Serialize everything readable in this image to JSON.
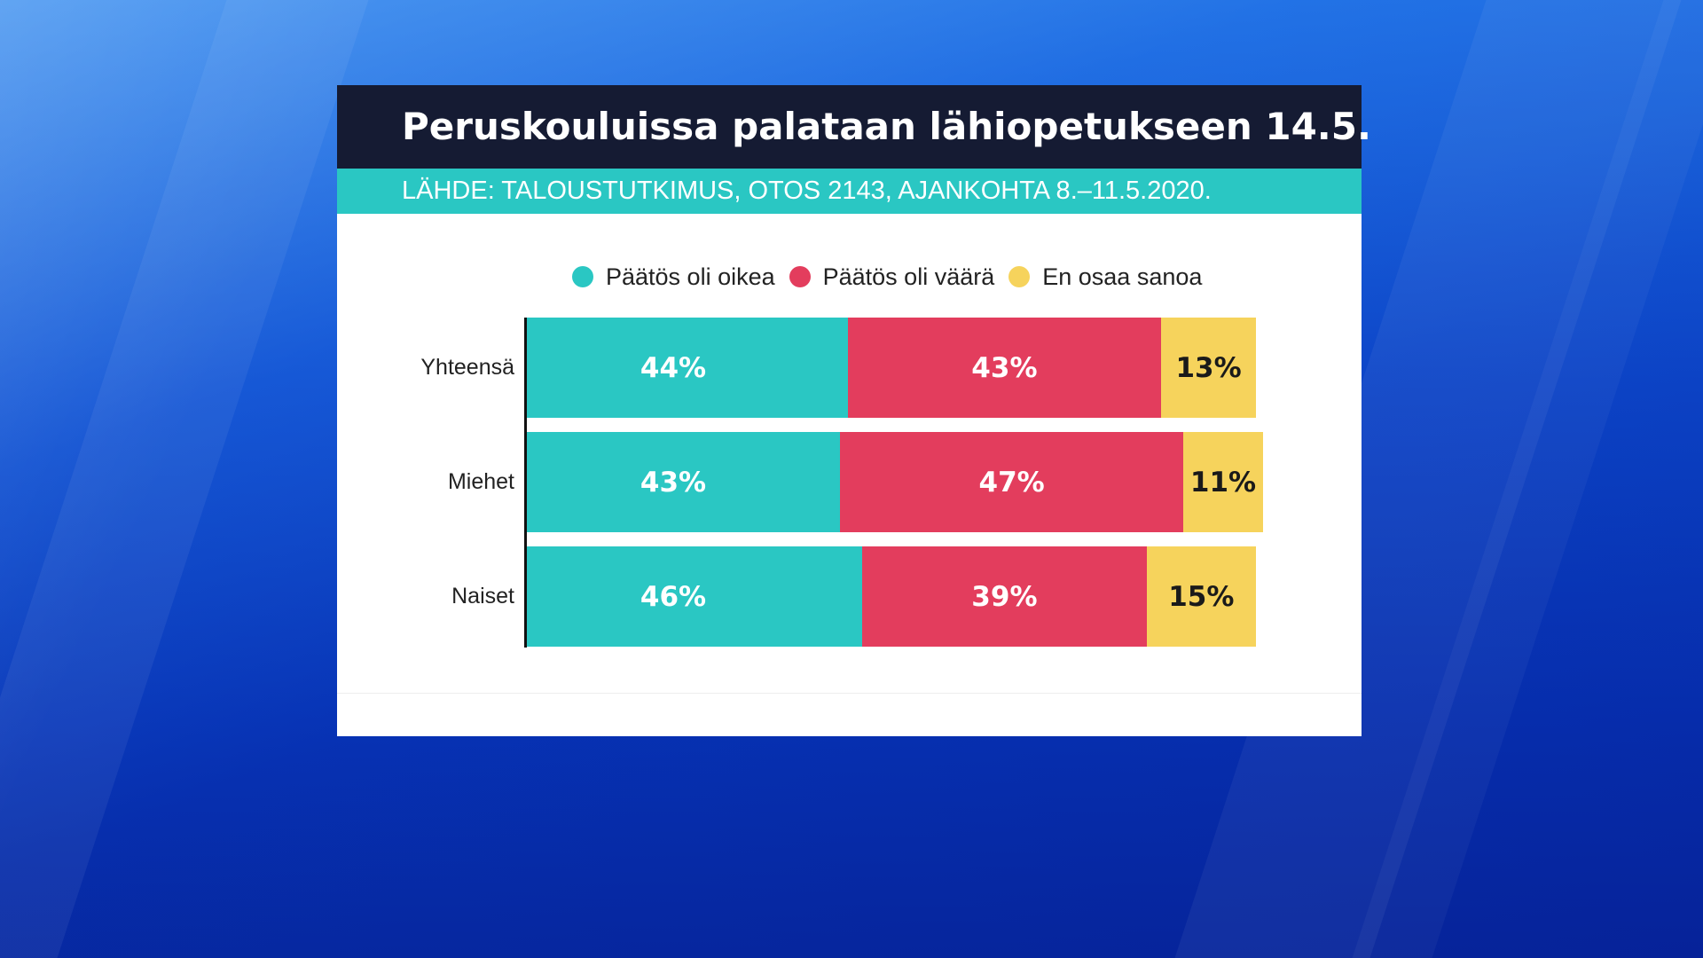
{
  "header": {
    "title": "Peruskouluissa palataan lähiopetukseen 14.5.",
    "source": "LÄHDE: TALOUSTUTKIMUS, OTOS 2143, AJANKOHTA 8.–11.5.2020."
  },
  "colors": {
    "title_bg": "#151b33",
    "source_bg": "#2ac7c3",
    "series": [
      "#2ac7c3",
      "#e33d5d",
      "#f6d35c"
    ],
    "label_text": [
      "#ffffff",
      "#ffffff",
      "#1a1a1a"
    ]
  },
  "chart_data": {
    "type": "bar",
    "orientation": "horizontal",
    "stacked": true,
    "categories": [
      "Yhteensä",
      "Miehet",
      "Naiset"
    ],
    "series": [
      {
        "name": "Päätös oli oikea",
        "values": [
          44,
          43,
          46
        ],
        "labels": [
          "44%",
          "43%",
          "46%"
        ]
      },
      {
        "name": "Päätös oli väärä",
        "values": [
          43,
          47,
          39
        ],
        "labels": [
          "43%",
          "47%",
          "39%"
        ]
      },
      {
        "name": "En osaa sanoa",
        "values": [
          13,
          11,
          15
        ],
        "labels": [
          "13%",
          "11%",
          "15%"
        ]
      }
    ],
    "xlim": [
      0,
      100
    ],
    "legend": "top",
    "grid": false
  }
}
